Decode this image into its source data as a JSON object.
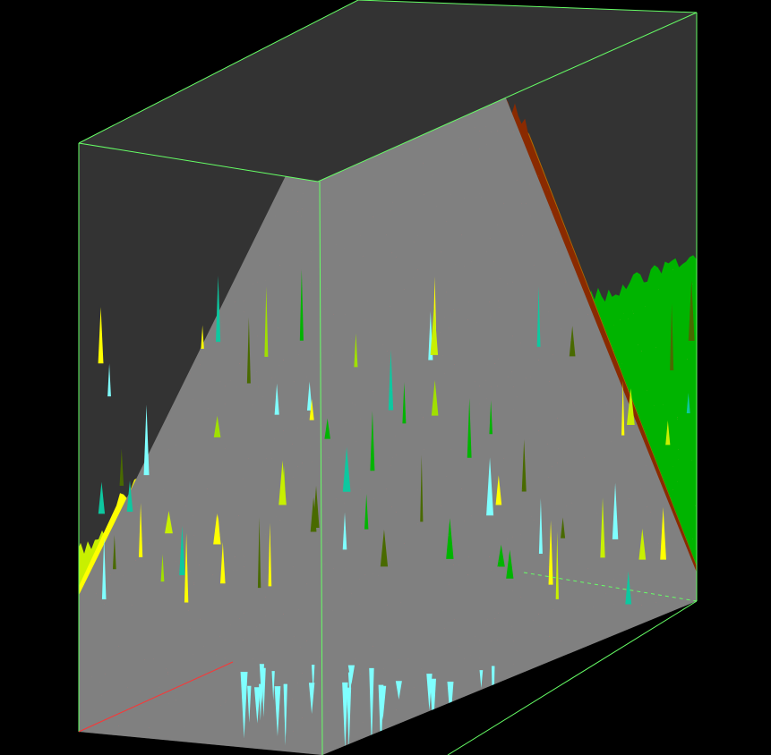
{
  "viewer": {
    "background_color": "#000000",
    "box_face_color": "#333333",
    "box_edge_color": "#66ff66",
    "x_axis_color": "#ff3333",
    "grid_line_color": "#66ff66"
  },
  "surface": {
    "colormap": [
      "#7fffff",
      "#10c8a0",
      "#c8f000",
      "#ffff00",
      "#a0e000",
      "#00b400",
      "#4a6a00",
      "#b89a30",
      "#b06a00",
      "#8a2a00",
      "#808080"
    ],
    "speckle_color": "#ff2a2a"
  }
}
